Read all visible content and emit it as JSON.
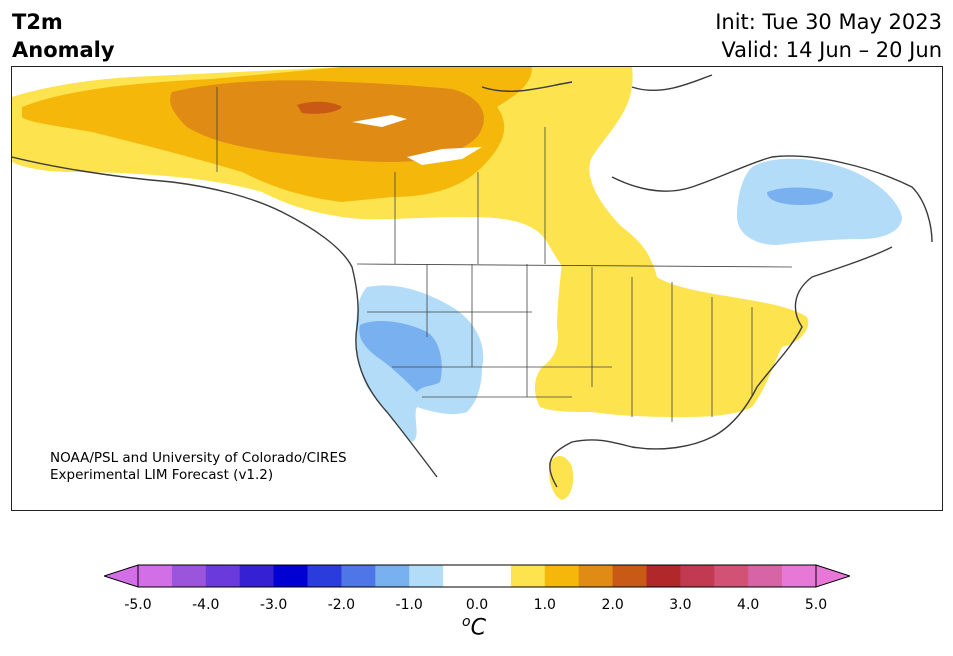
{
  "title": {
    "line1": "T2m",
    "line2": "Anomaly"
  },
  "forecast": {
    "init": "Init: Tue 30 May 2023",
    "valid": "Valid: 14 Jun – 20 Jun"
  },
  "credit": {
    "line1": "NOAA/PSL and University of Colorado/CIRES",
    "line2": "Experimental LIM Forecast (v1.2)"
  },
  "colorbar": {
    "colors": [
      "#d26ee6",
      "#9b55dd",
      "#6a3adc",
      "#3520d2",
      "#0000d2",
      "#2a3cdc",
      "#4f76e6",
      "#78b0f0",
      "#b2dcf8",
      "#ffffff",
      "#ffffff",
      "#fde34d",
      "#f4b70a",
      "#df8b14",
      "#c95a16",
      "#b0282a",
      "#c23a52",
      "#d25276",
      "#d764a4",
      "#e878d8"
    ],
    "ticks": [
      "-5.0",
      "-4.0",
      "-3.0",
      "-2.0",
      "-1.0",
      "0.0",
      "1.0",
      "2.0",
      "3.0",
      "4.0",
      "5.0"
    ],
    "unit_base": "C",
    "unit_sup": "o"
  },
  "map_regions": [
    {
      "name": "arctic-canada-warm",
      "level": "+1"
    },
    {
      "name": "northwest-territories-warm",
      "level": "+2"
    },
    {
      "name": "northwest-territories-hot-core",
      "level": "+2.5"
    },
    {
      "name": "eastern-us-warm",
      "level": "+1"
    },
    {
      "name": "quebec-cool",
      "level": "-1"
    },
    {
      "name": "quebec-cool-core",
      "level": "-1.5"
    },
    {
      "name": "western-us-cool",
      "level": "-1"
    },
    {
      "name": "california-nevada-cool-core",
      "level": "-1.5"
    }
  ]
}
